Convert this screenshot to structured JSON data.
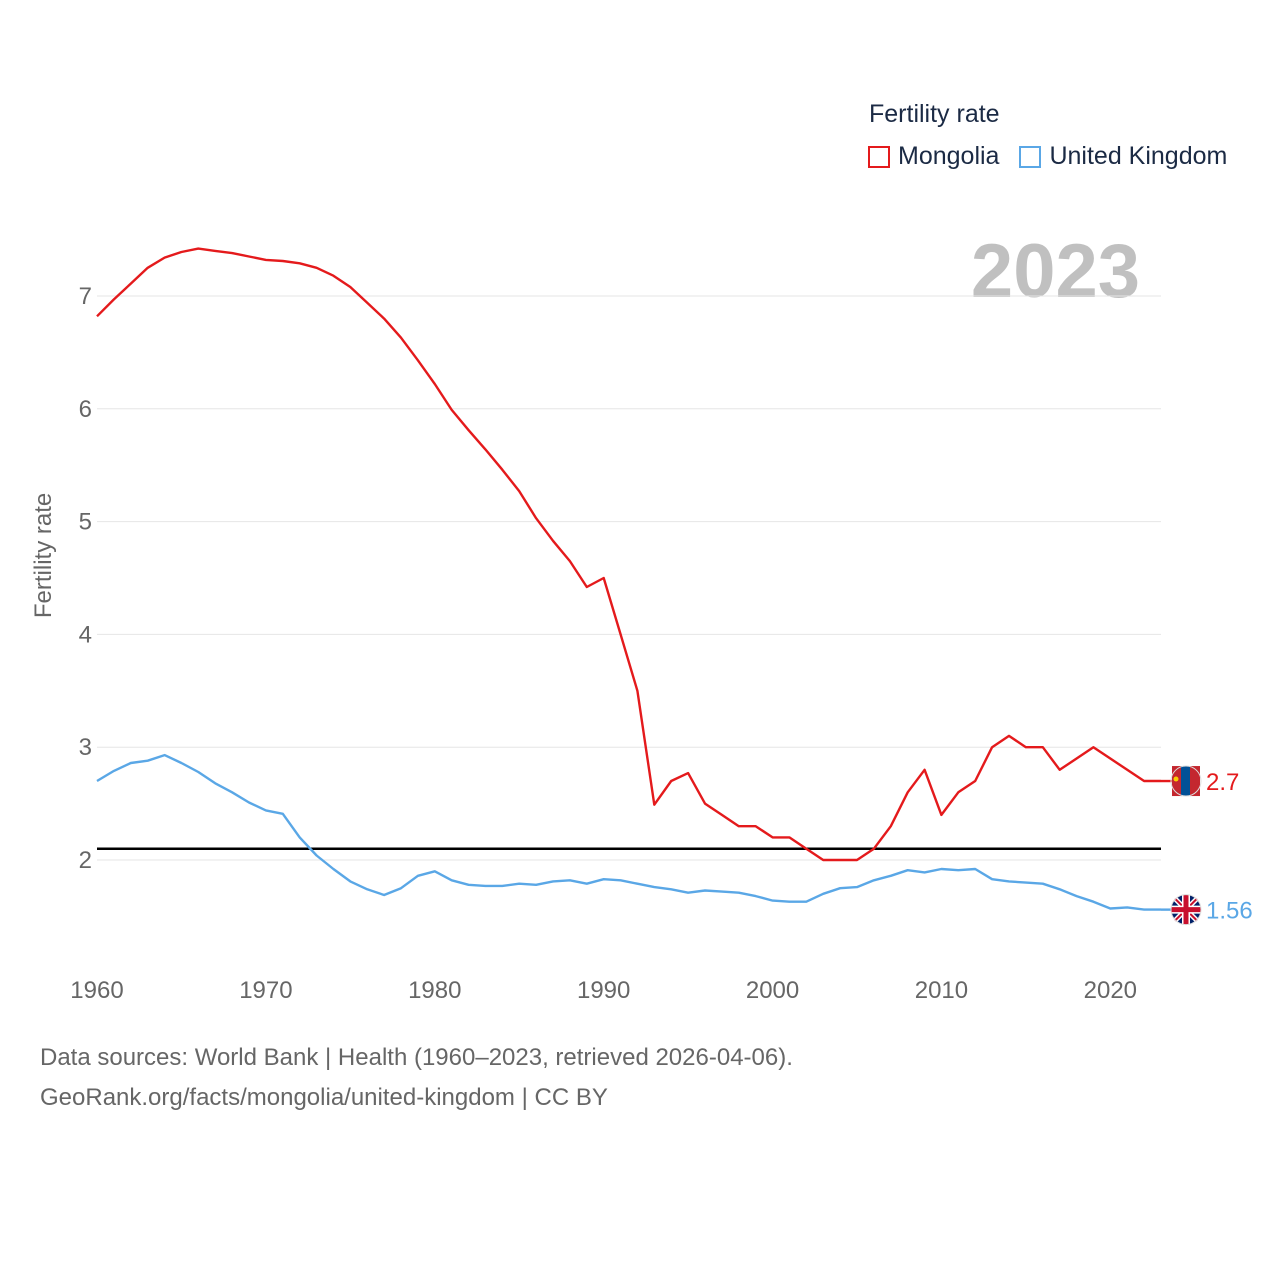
{
  "legend": {
    "title": "Fertility rate",
    "items": [
      {
        "label": "Mongolia",
        "color": "#e41a1c"
      },
      {
        "label": "United Kingdom",
        "color": "#5aa7e6"
      }
    ]
  },
  "year_label": "2023",
  "footer": {
    "line1": "Data sources: World Bank | Health (1960–2023, retrieved 2026-04-06).",
    "line2": "GeoRank.org/facts/mongolia/united-kingdom | CC BY"
  },
  "chart_data": {
    "type": "line",
    "ylabel": "Fertility rate",
    "xlabel": "",
    "xlim": [
      1960,
      2023
    ],
    "ylim": [
      1.1,
      7.6
    ],
    "xticks": [
      1960,
      1970,
      1980,
      1990,
      2000,
      2010,
      2020
    ],
    "yticks": [
      2,
      3,
      4,
      5,
      6,
      7
    ],
    "reference_line": 2.1,
    "x": [
      1960,
      1961,
      1962,
      1963,
      1964,
      1965,
      1966,
      1967,
      1968,
      1969,
      1970,
      1971,
      1972,
      1973,
      1974,
      1975,
      1976,
      1977,
      1978,
      1979,
      1980,
      1981,
      1982,
      1983,
      1984,
      1985,
      1986,
      1987,
      1988,
      1989,
      1990,
      1991,
      1992,
      1993,
      1994,
      1995,
      1996,
      1997,
      1998,
      1999,
      2000,
      2001,
      2002,
      2003,
      2004,
      2005,
      2006,
      2007,
      2008,
      2009,
      2010,
      2011,
      2012,
      2013,
      2014,
      2015,
      2016,
      2017,
      2018,
      2019,
      2020,
      2021,
      2022,
      2023
    ],
    "series": [
      {
        "name": "Mongolia",
        "color": "#e41a1c",
        "end_label": "2.7",
        "values": [
          6.82,
          6.97,
          7.11,
          7.25,
          7.34,
          7.39,
          7.42,
          7.4,
          7.38,
          7.35,
          7.32,
          7.31,
          7.29,
          7.25,
          7.18,
          7.08,
          6.94,
          6.8,
          6.63,
          6.43,
          6.22,
          5.99,
          5.81,
          5.64,
          5.46,
          5.27,
          5.03,
          4.83,
          4.65,
          4.42,
          4.5,
          4.0,
          3.5,
          2.49,
          2.7,
          2.77,
          2.5,
          2.4,
          2.3,
          2.3,
          2.2,
          2.2,
          2.1,
          2.0,
          2.0,
          2.0,
          2.1,
          2.3,
          2.6,
          2.8,
          2.4,
          2.6,
          2.7,
          3.0,
          3.1,
          3.0,
          3.0,
          2.8,
          2.9,
          3.0,
          2.9,
          2.8,
          2.7,
          2.7
        ]
      },
      {
        "name": "United Kingdom",
        "color": "#5aa7e6",
        "end_label": "1.56",
        "values": [
          2.7,
          2.79,
          2.86,
          2.88,
          2.93,
          2.86,
          2.78,
          2.68,
          2.6,
          2.51,
          2.44,
          2.41,
          2.2,
          2.04,
          1.92,
          1.81,
          1.74,
          1.69,
          1.75,
          1.86,
          1.9,
          1.82,
          1.78,
          1.77,
          1.77,
          1.79,
          1.78,
          1.81,
          1.82,
          1.79,
          1.83,
          1.82,
          1.79,
          1.76,
          1.74,
          1.71,
          1.73,
          1.72,
          1.71,
          1.68,
          1.64,
          1.63,
          1.63,
          1.7,
          1.75,
          1.76,
          1.82,
          1.86,
          1.91,
          1.89,
          1.92,
          1.91,
          1.92,
          1.83,
          1.81,
          1.8,
          1.79,
          1.74,
          1.68,
          1.63,
          1.57,
          1.58,
          1.56,
          1.56
        ]
      }
    ]
  }
}
